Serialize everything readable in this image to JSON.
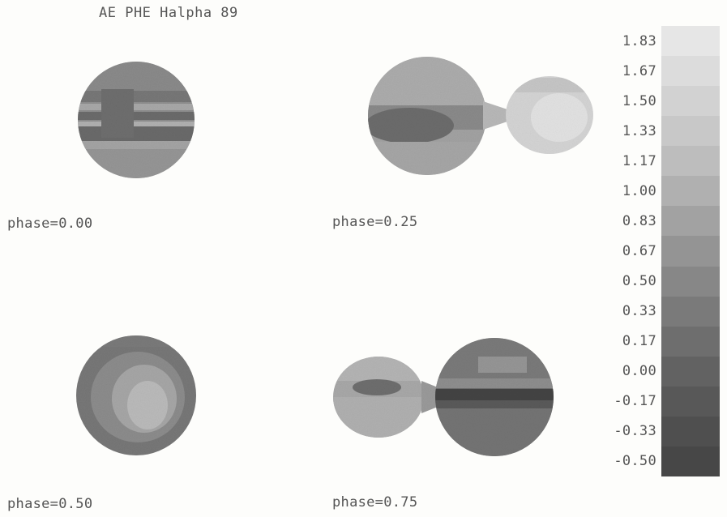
{
  "title": "AE PHE Halpha 89",
  "panels": [
    {
      "label": "phase=0.00"
    },
    {
      "label": "phase=0.25"
    },
    {
      "label": "phase=0.50"
    },
    {
      "label": "phase=0.75"
    }
  ],
  "colorbar": {
    "labels": [
      "1.83",
      "1.67",
      "1.50",
      "1.33",
      "1.17",
      "1.00",
      "0.83",
      "0.67",
      "0.50",
      "0.33",
      "0.17",
      "0.00",
      "-0.17",
      "-0.33",
      "-0.50"
    ],
    "colors": [
      "#e6e6e6",
      "#dcdcdc",
      "#d2d2d2",
      "#c8c8c8",
      "#bdbdbd",
      "#b0b0b0",
      "#a2a2a2",
      "#949494",
      "#878787",
      "#7a7a7a",
      "#6e6e6e",
      "#626262",
      "#585858",
      "#4f4f4f",
      "#474747"
    ]
  }
}
